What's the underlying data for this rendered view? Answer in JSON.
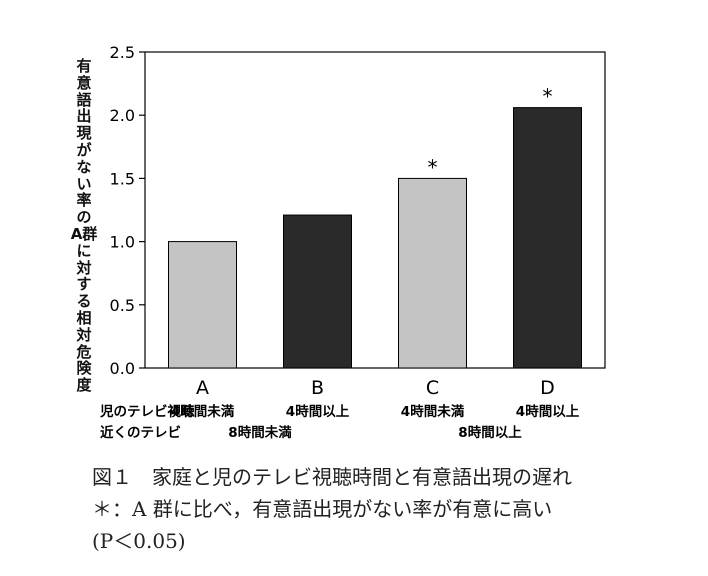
{
  "chart_data": {
    "type": "bar",
    "ylabel_line1": "有意語出現がない率の",
    "ylabel_line2": "A群に対する相対危険度",
    "ylim": [
      0,
      2.5
    ],
    "yticks": [
      "0.0",
      "0.5",
      "1.0",
      "1.5",
      "2.0",
      "2.5"
    ],
    "ytick_values": [
      0,
      0.5,
      1.0,
      1.5,
      2.0,
      2.5
    ],
    "categories": [
      "A",
      "B",
      "C",
      "D"
    ],
    "values": [
      1.0,
      1.21,
      1.5,
      2.06
    ],
    "significant": [
      false,
      false,
      true,
      true
    ],
    "significance_mark": "*",
    "bar_colors": [
      "#c4c4c4",
      "#2a2a2a",
      "#c4c4c4",
      "#2a2a2a"
    ],
    "row1_label": "児のテレビ視聴",
    "row2_label": "近くのテレビ",
    "row1_values": [
      "4時間未満",
      "4時間以上",
      "4時間未満",
      "4時間以上"
    ],
    "row2_values": [
      "8時間未満",
      "8時間以上"
    ],
    "grid": false,
    "legend": "none"
  },
  "caption": {
    "line1": "図１　家庭と児のテレビ視聴時間と有意語出現の遅れ",
    "line2": "＊：A 群に比べ，有意語出現がない率が有意に高い",
    "line3": "(P＜0.05)"
  }
}
